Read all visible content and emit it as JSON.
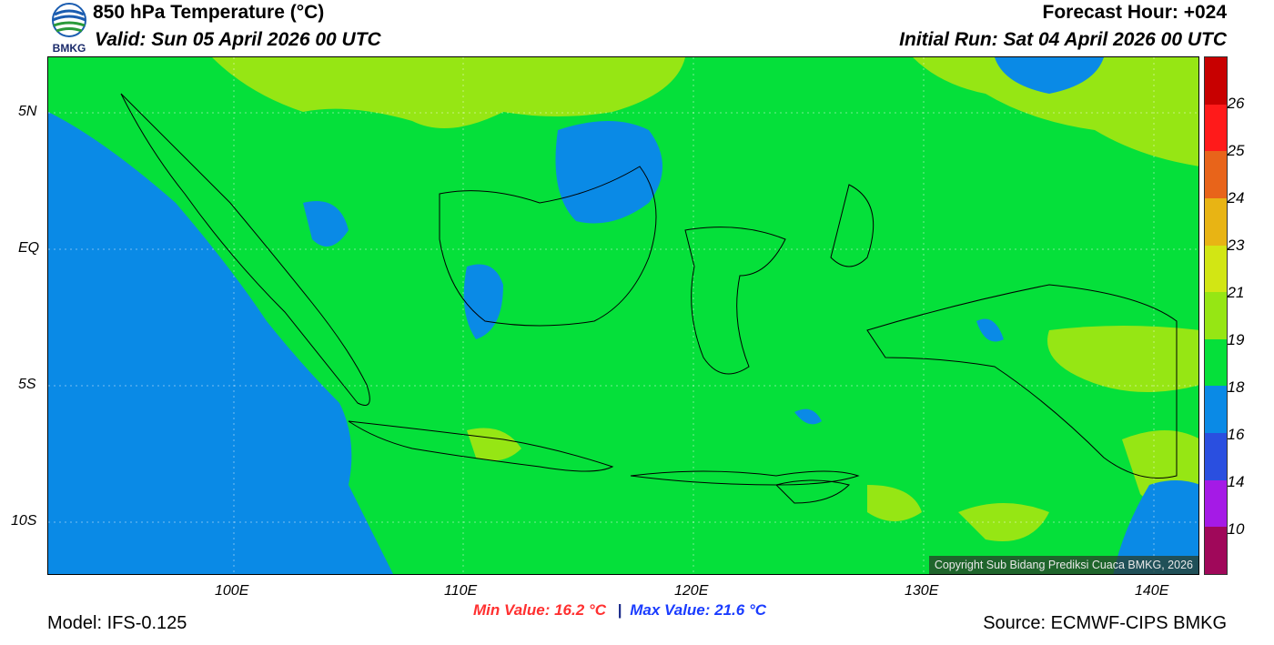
{
  "header": {
    "title": "850 hPa Temperature (°C)",
    "valid": "Valid: Sun 05 April 2026 00 UTC",
    "forecast_hour": "Forecast Hour: +024",
    "initial_run": "Initial Run: Sat 04 April 2026 00 UTC",
    "logo_text": "BMKG"
  },
  "map": {
    "lat_ticks": [
      "5N",
      "EQ",
      "5S",
      "10S"
    ],
    "lon_ticks": [
      "100E",
      "110E",
      "120E",
      "130E",
      "140E"
    ],
    "copyright": "Copyright Sub Bidang Prediksi Cuaca BMKG, 2026"
  },
  "colorbar": {
    "labels": [
      "26",
      "25",
      "24",
      "23",
      "21",
      "19",
      "18",
      "16",
      "14",
      "10"
    ],
    "colors": [
      "#c80000",
      "#ff1a1a",
      "#e8641a",
      "#e8b414",
      "#d2e614",
      "#96e614",
      "#05e03a",
      "#0a8ae6",
      "#2a4fe0",
      "#a51ae6",
      "#a0085a"
    ]
  },
  "stats": {
    "min_label": "Min Value: 16.2 °C",
    "separator": "|",
    "max_label": "Max Value: 21.6 °C",
    "min_color": "#ff3030",
    "max_color": "#1a3cff"
  },
  "footer": {
    "model": "Model: IFS-0.125",
    "source": "Source: ECMWF-CIPS BMKG"
  }
}
